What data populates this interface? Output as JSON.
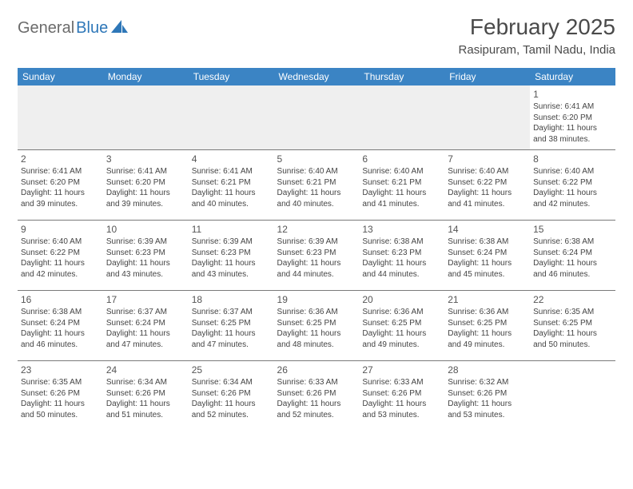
{
  "logo": {
    "part1": "General",
    "part2": "Blue"
  },
  "title": "February 2025",
  "location": "Rasipuram, Tamil Nadu, India",
  "colors": {
    "header_bg": "#3b84c4",
    "header_text": "#ffffff",
    "border": "#7a7a7a",
    "logo_gray": "#6b6b6b",
    "logo_blue": "#2e77b8",
    "empty_bg": "#efefef"
  },
  "weekdays": [
    "Sunday",
    "Monday",
    "Tuesday",
    "Wednesday",
    "Thursday",
    "Friday",
    "Saturday"
  ],
  "weeks": [
    [
      null,
      null,
      null,
      null,
      null,
      null,
      {
        "d": "1",
        "sr": "6:41 AM",
        "ss": "6:20 PM",
        "dl": "11 hours and 38 minutes."
      }
    ],
    [
      {
        "d": "2",
        "sr": "6:41 AM",
        "ss": "6:20 PM",
        "dl": "11 hours and 39 minutes."
      },
      {
        "d": "3",
        "sr": "6:41 AM",
        "ss": "6:20 PM",
        "dl": "11 hours and 39 minutes."
      },
      {
        "d": "4",
        "sr": "6:41 AM",
        "ss": "6:21 PM",
        "dl": "11 hours and 40 minutes."
      },
      {
        "d": "5",
        "sr": "6:40 AM",
        "ss": "6:21 PM",
        "dl": "11 hours and 40 minutes."
      },
      {
        "d": "6",
        "sr": "6:40 AM",
        "ss": "6:21 PM",
        "dl": "11 hours and 41 minutes."
      },
      {
        "d": "7",
        "sr": "6:40 AM",
        "ss": "6:22 PM",
        "dl": "11 hours and 41 minutes."
      },
      {
        "d": "8",
        "sr": "6:40 AM",
        "ss": "6:22 PM",
        "dl": "11 hours and 42 minutes."
      }
    ],
    [
      {
        "d": "9",
        "sr": "6:40 AM",
        "ss": "6:22 PM",
        "dl": "11 hours and 42 minutes."
      },
      {
        "d": "10",
        "sr": "6:39 AM",
        "ss": "6:23 PM",
        "dl": "11 hours and 43 minutes."
      },
      {
        "d": "11",
        "sr": "6:39 AM",
        "ss": "6:23 PM",
        "dl": "11 hours and 43 minutes."
      },
      {
        "d": "12",
        "sr": "6:39 AM",
        "ss": "6:23 PM",
        "dl": "11 hours and 44 minutes."
      },
      {
        "d": "13",
        "sr": "6:38 AM",
        "ss": "6:23 PM",
        "dl": "11 hours and 44 minutes."
      },
      {
        "d": "14",
        "sr": "6:38 AM",
        "ss": "6:24 PM",
        "dl": "11 hours and 45 minutes."
      },
      {
        "d": "15",
        "sr": "6:38 AM",
        "ss": "6:24 PM",
        "dl": "11 hours and 46 minutes."
      }
    ],
    [
      {
        "d": "16",
        "sr": "6:38 AM",
        "ss": "6:24 PM",
        "dl": "11 hours and 46 minutes."
      },
      {
        "d": "17",
        "sr": "6:37 AM",
        "ss": "6:24 PM",
        "dl": "11 hours and 47 minutes."
      },
      {
        "d": "18",
        "sr": "6:37 AM",
        "ss": "6:25 PM",
        "dl": "11 hours and 47 minutes."
      },
      {
        "d": "19",
        "sr": "6:36 AM",
        "ss": "6:25 PM",
        "dl": "11 hours and 48 minutes."
      },
      {
        "d": "20",
        "sr": "6:36 AM",
        "ss": "6:25 PM",
        "dl": "11 hours and 49 minutes."
      },
      {
        "d": "21",
        "sr": "6:36 AM",
        "ss": "6:25 PM",
        "dl": "11 hours and 49 minutes."
      },
      {
        "d": "22",
        "sr": "6:35 AM",
        "ss": "6:25 PM",
        "dl": "11 hours and 50 minutes."
      }
    ],
    [
      {
        "d": "23",
        "sr": "6:35 AM",
        "ss": "6:26 PM",
        "dl": "11 hours and 50 minutes."
      },
      {
        "d": "24",
        "sr": "6:34 AM",
        "ss": "6:26 PM",
        "dl": "11 hours and 51 minutes."
      },
      {
        "d": "25",
        "sr": "6:34 AM",
        "ss": "6:26 PM",
        "dl": "11 hours and 52 minutes."
      },
      {
        "d": "26",
        "sr": "6:33 AM",
        "ss": "6:26 PM",
        "dl": "11 hours and 52 minutes."
      },
      {
        "d": "27",
        "sr": "6:33 AM",
        "ss": "6:26 PM",
        "dl": "11 hours and 53 minutes."
      },
      {
        "d": "28",
        "sr": "6:32 AM",
        "ss": "6:26 PM",
        "dl": "11 hours and 53 minutes."
      },
      null
    ]
  ],
  "labels": {
    "sunrise": "Sunrise:",
    "sunset": "Sunset:",
    "daylight": "Daylight:"
  }
}
